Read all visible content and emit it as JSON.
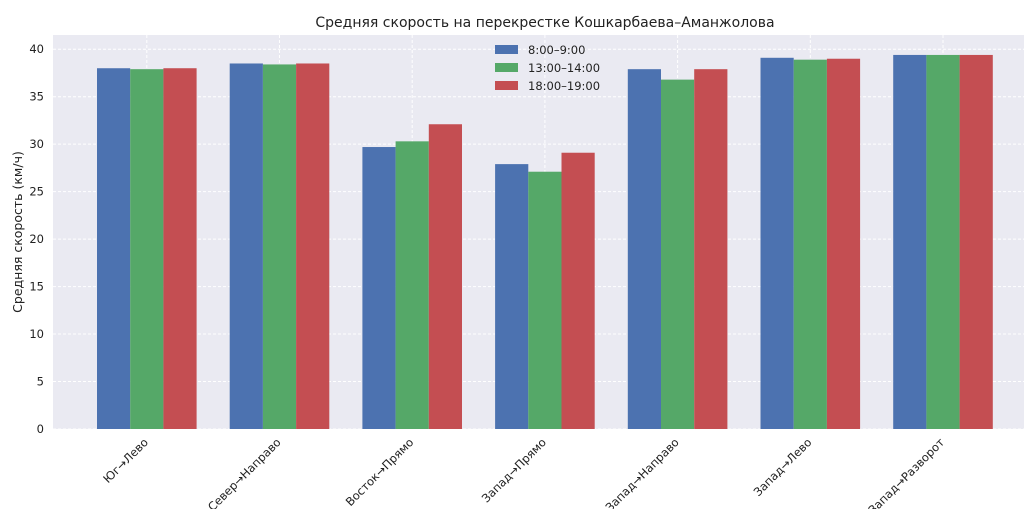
{
  "chart_data": {
    "type": "bar",
    "title": "Средняя скорость на перекрестке Кошкарбаева–Аманжолова",
    "xlabel": "",
    "ylabel": "Средняя скорость (км/ч)",
    "ylim": [
      0,
      41.5
    ],
    "yticks": [
      0,
      5,
      10,
      15,
      20,
      25,
      30,
      35,
      40
    ],
    "categories": [
      "Юг→Лево",
      "Север→Направо",
      "Восток→Прямо",
      "Запад→Прямо",
      "Запад→Направо",
      "Запад→Лево",
      "Запад→Разворот"
    ],
    "series": [
      {
        "name": "8:00–9:00",
        "color": "#4c72b0",
        "values": [
          38.0,
          38.5,
          29.7,
          27.9,
          37.9,
          39.1,
          39.4
        ]
      },
      {
        "name": "13:00–14:00",
        "color": "#55a868",
        "values": [
          37.9,
          38.4,
          30.3,
          27.1,
          36.8,
          38.9,
          39.4
        ]
      },
      {
        "name": "18:00–19:00",
        "color": "#c44e52",
        "values": [
          38.0,
          38.5,
          32.1,
          29.1,
          37.9,
          39.0,
          39.4
        ]
      }
    ],
    "grid": true,
    "legend_position": "top-center",
    "background": "#eaeaf2"
  }
}
